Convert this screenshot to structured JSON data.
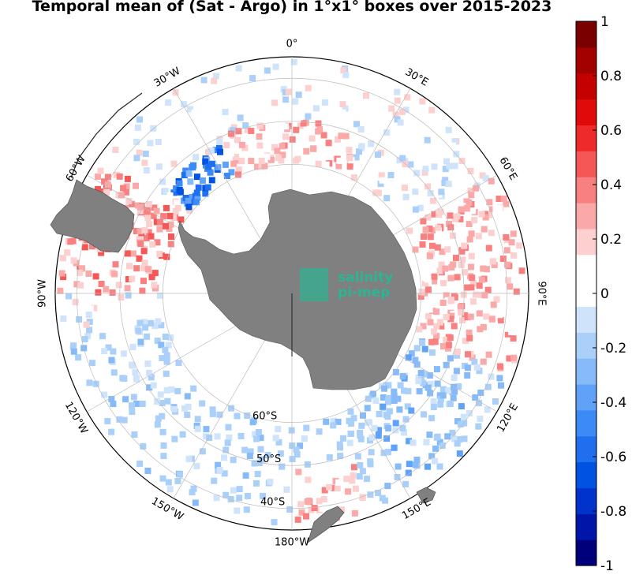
{
  "title": "Temporal mean of (Sat - Argo) in 1°x1° boxes over 2015-2023",
  "meridian_labels": [
    {
      "lon": 0,
      "text": "0°"
    },
    {
      "lon": 30,
      "text": "30°E"
    },
    {
      "lon": 60,
      "text": "60°E"
    },
    {
      "lon": 90,
      "text": "90°E"
    },
    {
      "lon": 120,
      "text": "120°E"
    },
    {
      "lon": 150,
      "text": "150°E"
    },
    {
      "lon": 180,
      "text": "180°W"
    },
    {
      "lon": -150,
      "text": "150°W"
    },
    {
      "lon": -120,
      "text": "120°W"
    },
    {
      "lon": -90,
      "text": "90°W"
    },
    {
      "lon": -60,
      "text": "60°W"
    },
    {
      "lon": -30,
      "text": "30°W"
    }
  ],
  "parallel_labels": [
    {
      "lat": -60,
      "text": "60°S"
    },
    {
      "lat": -50,
      "text": "50°S"
    },
    {
      "lat": -40,
      "text": "40°S"
    }
  ],
  "colorbar": {
    "min": -1,
    "max": 1,
    "ticks": [
      "1",
      "0.8",
      "0.6",
      "0.4",
      "0.2",
      "0",
      "-0.2",
      "-0.4",
      "-0.6",
      "-0.8",
      "-1"
    ],
    "colors": [
      "#00007a",
      "#0016a8",
      "#0033cc",
      "#0052e0",
      "#1f6fef",
      "#3b8af5",
      "#5fa2f7",
      "#86baf8",
      "#aacff9",
      "#cfe3fb",
      "#ffffff",
      "#ffffff",
      "#fdd0d0",
      "#fba8a8",
      "#f88080",
      "#f55656",
      "#ef2a2a",
      "#e00a0a",
      "#c40000",
      "#a30000",
      "#7a0000"
    ]
  },
  "watermark": {
    "line1": "salinity",
    "line2": "pi-mep"
  },
  "colors": {
    "land": "#808080",
    "grid": "#bbbbbb"
  }
}
